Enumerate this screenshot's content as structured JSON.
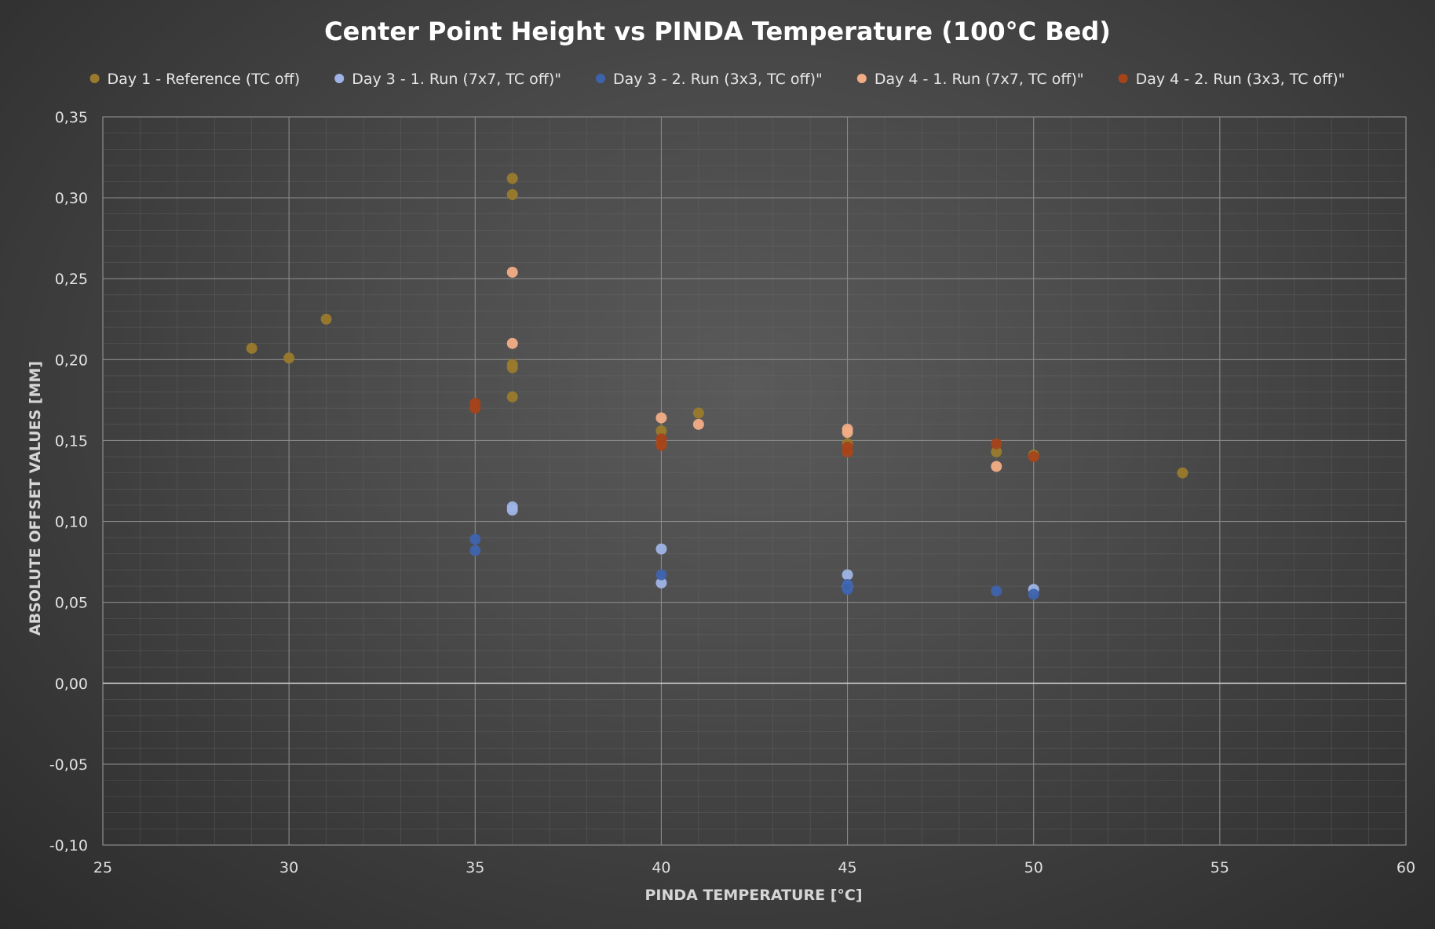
{
  "chart_data": {
    "type": "scatter",
    "title": "Center Point Height vs PINDA Temperature (100°C Bed)",
    "xlabel": "PINDA TEMPERATURE [°C]",
    "ylabel": "ABSOLUTE OFFSET VALUES [MM]",
    "xlim": [
      25,
      60
    ],
    "ylim": [
      -0.1,
      0.35
    ],
    "x_ticks": [
      25,
      30,
      35,
      40,
      45,
      50,
      55,
      60
    ],
    "y_ticks": [
      -0.1,
      -0.05,
      0,
      0.05,
      0.1,
      0.15,
      0.2,
      0.25,
      0.3,
      0.35
    ],
    "x_tick_labels": [
      "25",
      "30",
      "35",
      "40",
      "45",
      "50",
      "55",
      "60"
    ],
    "y_tick_labels": [
      "-0,10",
      "-0,05",
      "0,00",
      "0,05",
      "0,10",
      "0,15",
      "0,20",
      "0,25",
      "0,30",
      "0,35"
    ],
    "grid": true,
    "legend_position": "top",
    "series": [
      {
        "name": "Day 1 - Reference (TC off)",
        "color": "#9a7a2c",
        "points": [
          [
            29,
            0.207
          ],
          [
            30,
            0.201
          ],
          [
            31,
            0.225
          ],
          [
            36,
            0.312
          ],
          [
            36,
            0.302
          ],
          [
            36,
            0.197
          ],
          [
            36,
            0.195
          ],
          [
            36,
            0.177
          ],
          [
            40,
            0.156
          ],
          [
            40,
            0.148
          ],
          [
            41,
            0.167
          ],
          [
            45,
            0.148
          ],
          [
            45,
            0.143
          ],
          [
            49,
            0.143
          ],
          [
            50,
            0.141
          ],
          [
            54,
            0.13
          ]
        ]
      },
      {
        "name": "Day 3 - 1. Run (7x7, TC off)\"",
        "color": "#9fb4e6",
        "points": [
          [
            36,
            0.109
          ],
          [
            36,
            0.107
          ],
          [
            40,
            0.083
          ],
          [
            40,
            0.062
          ],
          [
            45,
            0.067
          ],
          [
            45,
            0.06
          ],
          [
            50,
            0.058
          ]
        ]
      },
      {
        "name": "Day 3 - 2. Run (3x3, TC off)\"",
        "color": "#3e63ad",
        "points": [
          [
            35,
            0.089
          ],
          [
            35,
            0.082
          ],
          [
            40,
            0.067
          ],
          [
            45,
            0.061
          ],
          [
            45,
            0.058
          ],
          [
            49,
            0.057
          ],
          [
            50,
            0.055
          ]
        ]
      },
      {
        "name": "Day 4 - 1. Run (7x7, TC off)\"",
        "color": "#f2ad86",
        "points": [
          [
            36,
            0.254
          ],
          [
            36,
            0.21
          ],
          [
            40,
            0.164
          ],
          [
            41,
            0.16
          ],
          [
            45,
            0.157
          ],
          [
            45,
            0.155
          ],
          [
            49,
            0.134
          ]
        ]
      },
      {
        "name": "Day 4 - 2. Run (3x3, TC off)\"",
        "color": "#a5431a",
        "points": [
          [
            35,
            0.173
          ],
          [
            35,
            0.17
          ],
          [
            40,
            0.151
          ],
          [
            40,
            0.147
          ],
          [
            45,
            0.146
          ],
          [
            45,
            0.143
          ],
          [
            49,
            0.148
          ],
          [
            50,
            0.14
          ]
        ]
      }
    ]
  }
}
